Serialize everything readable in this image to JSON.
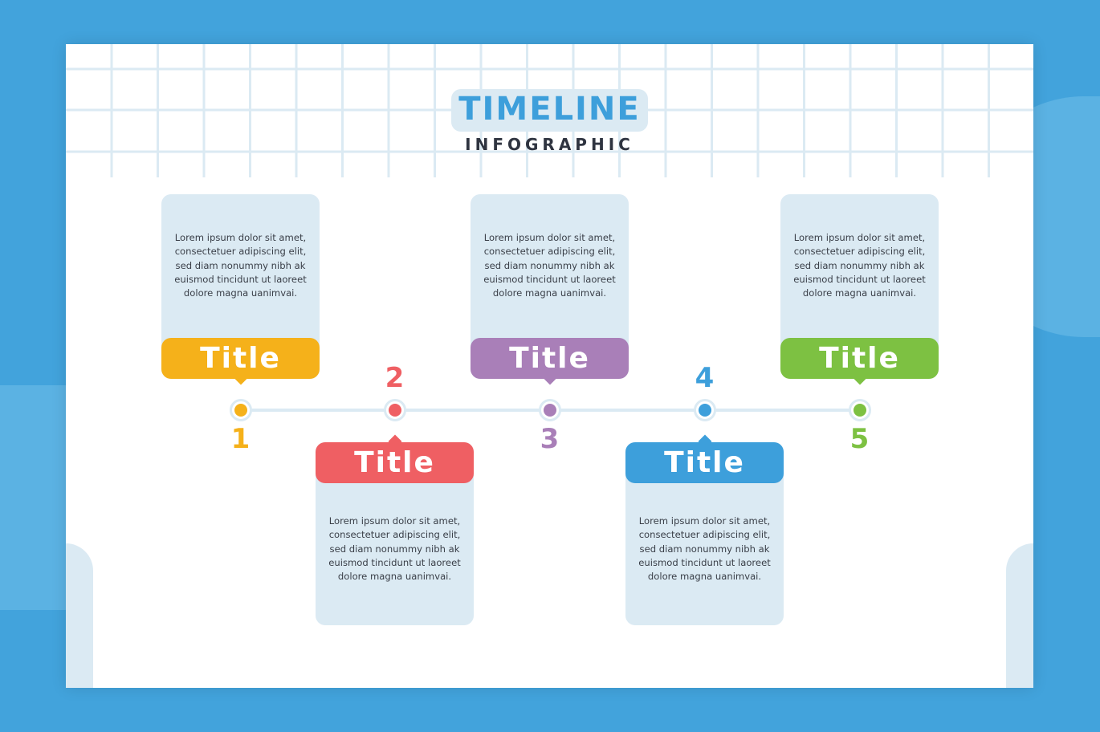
{
  "header": {
    "title": "TIMELINE",
    "subtitle": "INFOGRAPHIC"
  },
  "colors": {
    "background": "#42a3dc",
    "panel": "#dbeaf3",
    "accent": "#3d9fdb"
  },
  "steps": [
    {
      "number": "1",
      "title": "Title",
      "color": "#f5b11a",
      "position": "top",
      "text": "Lorem ipsum dolor sit amet, consectetuer adipiscing elit, sed diam nonummy nibh ak euismod tincidunt ut laoreet dolore magna uanimvai."
    },
    {
      "number": "2",
      "title": "Title",
      "color": "#ef5f63",
      "position": "bottom",
      "text": "Lorem ipsum dolor sit amet, consectetuer adipiscing elit, sed diam nonummy nibh ak euismod tincidunt ut laoreet dolore magna uanimvai."
    },
    {
      "number": "3",
      "title": "Title",
      "color": "#a97fb8",
      "position": "top",
      "text": "Lorem ipsum dolor sit amet, consectetuer adipiscing elit, sed diam nonummy nibh ak euismod tincidunt ut laoreet dolore magna uanimvai."
    },
    {
      "number": "4",
      "title": "Title",
      "color": "#3d9fdb",
      "position": "bottom",
      "text": "Lorem ipsum dolor sit amet, consectetuer adipiscing elit, sed diam nonummy nibh ak euismod tincidunt ut laoreet dolore magna uanimvai."
    },
    {
      "number": "5",
      "title": "Title",
      "color": "#7dc142",
      "position": "top",
      "text": "Lorem ipsum dolor sit amet, consectetuer adipiscing elit, sed diam nonummy nibh ak euismod tincidunt ut laoreet dolore magna uanimvai."
    }
  ]
}
